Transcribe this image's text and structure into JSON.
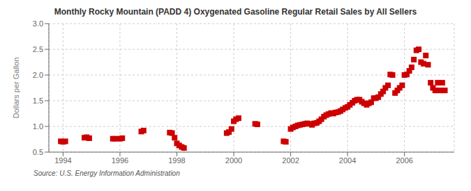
{
  "chart_data": {
    "type": "scatter",
    "title": "Monthly Rocky Mountain (PADD 4) Oxygenated Gasoline Regular Retail Sales by All Sellers",
    "y_label": "Dollars per Gallon",
    "annotations": [
      "Source: U.S. Energy Information Administration"
    ],
    "color": "#cc0000",
    "marker": "square",
    "grid": true,
    "xlim": [
      1993.5,
      2007.75
    ],
    "xticks": [
      1994,
      1996,
      1998,
      2000,
      2002,
      2004,
      2006
    ],
    "ylim": [
      0.5,
      3.0
    ],
    "yticks": [
      0.5,
      {
        "value": 1.0,
        "label": "1.0"
      },
      1.5,
      {
        "value": 2.0,
        "label": "2.0"
      },
      2.5,
      {
        "value": 3.0,
        "label": "3.0"
      }
    ],
    "x": [
      1993.92,
      1994.0,
      1994.08,
      1994.75,
      1994.83,
      1994.92,
      1995.75,
      1995.83,
      1996.0,
      1996.08,
      1996.75,
      1996.83,
      1997.75,
      1997.83,
      1997.92,
      1998.0,
      1998.08,
      1998.17,
      1998.25,
      1999.75,
      1999.83,
      1999.92,
      2000.0,
      2000.08,
      2000.17,
      2000.75,
      2000.83,
      2001.75,
      2001.83,
      2002.0,
      2002.08,
      2002.17,
      2002.25,
      2002.33,
      2002.42,
      2002.5,
      2002.58,
      2002.67,
      2002.75,
      2002.83,
      2002.92,
      2003.0,
      2003.08,
      2003.17,
      2003.25,
      2003.33,
      2003.42,
      2003.5,
      2003.58,
      2003.67,
      2003.75,
      2003.83,
      2003.92,
      2004.0,
      2004.08,
      2004.17,
      2004.25,
      2004.33,
      2004.42,
      2004.5,
      2004.58,
      2004.67,
      2004.75,
      2004.83,
      2004.92,
      2005.0,
      2005.08,
      2005.17,
      2005.25,
      2005.33,
      2005.42,
      2005.5,
      2005.58,
      2005.67,
      2005.75,
      2005.83,
      2005.92,
      2006.0,
      2006.08,
      2006.17,
      2006.25,
      2006.33,
      2006.42,
      2006.5,
      2006.58,
      2006.67,
      2006.75,
      2006.83,
      2006.92,
      2007.0,
      2007.08,
      2007.17,
      2007.25,
      2007.33,
      2007.42
    ],
    "values": [
      0.71,
      0.7,
      0.71,
      0.78,
      0.79,
      0.77,
      0.76,
      0.76,
      0.76,
      0.77,
      0.9,
      0.92,
      0.88,
      0.87,
      0.78,
      0.67,
      0.63,
      0.6,
      0.58,
      0.87,
      0.89,
      0.95,
      1.1,
      1.14,
      1.16,
      1.05,
      1.04,
      0.71,
      0.7,
      0.95,
      0.98,
      1.0,
      1.02,
      1.03,
      1.04,
      1.05,
      1.06,
      1.05,
      1.03,
      1.06,
      1.07,
      1.1,
      1.14,
      1.19,
      1.22,
      1.24,
      1.26,
      1.25,
      1.27,
      1.28,
      1.3,
      1.33,
      1.36,
      1.38,
      1.42,
      1.46,
      1.5,
      1.52,
      1.52,
      1.48,
      1.45,
      1.42,
      1.45,
      1.47,
      1.55,
      1.55,
      1.57,
      1.63,
      1.68,
      1.75,
      1.8,
      2.01,
      2.0,
      1.65,
      1.7,
      1.75,
      1.8,
      2.0,
      2.01,
      2.08,
      2.15,
      2.3,
      2.48,
      2.5,
      2.25,
      2.22,
      2.38,
      2.2,
      1.85,
      1.75,
      1.7,
      1.85,
      1.7,
      1.85,
      1.7
    ]
  }
}
